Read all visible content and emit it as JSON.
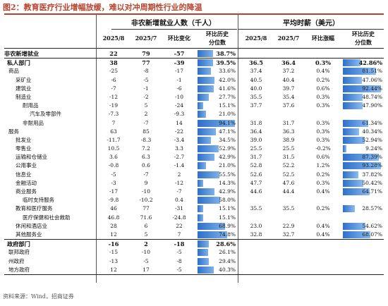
{
  "title": "图2：教育医疗行业增幅放缓，难以对冲周期性行业的降温",
  "header": {
    "group_left": "非农新增就业人数（千人）",
    "group_right": "平均时薪（美元）",
    "cols_left": [
      "2025/8",
      "2025/7",
      "环比变化",
      "环比历史",
      "分位数"
    ],
    "cols_right": [
      "2025/8",
      "2025/7",
      "环比涨幅",
      "环比历史",
      "分位数"
    ]
  },
  "rows": [
    {
      "label": "非农新增就业",
      "indent": 0,
      "bold": true,
      "a": "22",
      "b": "79",
      "c": "-57",
      "p1": "38.7%",
      "p1v": 38.7,
      "d": "",
      "e": "",
      "f": "",
      "p2": "",
      "p2v": null
    },
    {
      "label": "私人部门",
      "indent": 1,
      "bold": true,
      "a": "38",
      "b": "77",
      "c": "-39",
      "p1": "39.5%",
      "p1v": 39.5,
      "d": "36.5",
      "e": "36.4",
      "f": "0.3%",
      "p2": "42.86%",
      "p2v": 42.86
    },
    {
      "label": "商品",
      "indent": 2,
      "bold": false,
      "a": "-25",
      "b": "-8",
      "c": "-17",
      "p1": "33.6%",
      "p1v": 33.6,
      "d": "37.4",
      "e": "37.2",
      "f": "0.4%",
      "p2": "81.51%",
      "p2v": 81.51
    },
    {
      "label": "采矿业",
      "indent": 3,
      "bold": false,
      "a": "-6",
      "b": "-5",
      "c": "-1",
      "p1": "42.0%",
      "p1v": 42.0,
      "d": "40.5",
      "e": "40.4",
      "f": "0.2%",
      "p2": "47.06%",
      "p2v": 47.06
    },
    {
      "label": "建筑业",
      "indent": 3,
      "bold": false,
      "a": "-7",
      "b": "-1",
      "c": "-6",
      "p1": "41.6%",
      "p1v": 41.6,
      "d": "40.0",
      "e": "39.7",
      "f": "0.6%",
      "p2": "92.44%",
      "p2v": 92.44
    },
    {
      "label": "制造业",
      "indent": 3,
      "bold": false,
      "a": "-12",
      "b": "-2",
      "c": "-10",
      "p1": "27.7%",
      "p1v": 27.7,
      "d": "35.5",
      "e": "35.4",
      "f": "0.3%",
      "p2": "48.74%",
      "p2v": 48.74
    },
    {
      "label": "耐用品",
      "indent": 4,
      "bold": false,
      "a": "-19",
      "b": "5",
      "c": "-24",
      "p1": "15.1%",
      "p1v": 15.1,
      "d": "37.7",
      "e": "37.6",
      "f": "0.3%",
      "p2": "47.90%",
      "p2v": 47.9
    },
    {
      "label": "汽车及零部件",
      "indent": 5,
      "bold": false,
      "a": "-7.3",
      "b": "2",
      "c": "-9.3",
      "p1": "21.0%",
      "p1v": 21.0,
      "d": "",
      "e": "",
      "f": "",
      "p2": "",
      "p2v": null
    },
    {
      "label": "非耐用品",
      "indent": 4,
      "bold": false,
      "a": "7",
      "b": "-7",
      "c": "14",
      "p1": "94.1%",
      "p1v": 94.1,
      "d": "31.8",
      "e": "31.7",
      "f": "0.3%",
      "p2": "61.34%",
      "p2v": 61.34
    },
    {
      "label": "服务",
      "indent": 2,
      "bold": false,
      "a": "63",
      "b": "85",
      "c": "-22",
      "p1": "47.1%",
      "p1v": 47.1,
      "d": "36.4",
      "e": "36.3",
      "f": "0.3%",
      "p2": "40.34%",
      "p2v": 40.34
    },
    {
      "label": "批发业",
      "indent": 3,
      "bold": false,
      "a": "-11.7",
      "b": "-8.3",
      "c": "-3.4",
      "p1": "34.5%",
      "p1v": 34.5,
      "d": "39.0",
      "e": "38.9",
      "f": "0.3%",
      "p2": "52.94%",
      "p2v": 52.94
    },
    {
      "label": "零售业",
      "indent": 3,
      "bold": false,
      "a": "10.5",
      "b": "7.2",
      "c": "3.3",
      "p1": "52.9%",
      "p1v": 52.9,
      "d": "25.5",
      "e": "25.5",
      "f": "-0.2%",
      "p2": "9.24%",
      "p2v": 9.24
    },
    {
      "label": "运输和仓储业",
      "indent": 3,
      "bold": false,
      "a": "3.6",
      "b": "6.3",
      "c": "-2.7",
      "p1": "42.9%",
      "p1v": 42.9,
      "d": "31.7",
      "e": "31.5",
      "f": "0.6%",
      "p2": "87.39%",
      "p2v": 87.39
    },
    {
      "label": "公用事业",
      "indent": 3,
      "bold": false,
      "a": "-0.8",
      "b": "0.6",
      "c": "-1.4",
      "p1": "21.0%",
      "p1v": 21.0,
      "d": "52.8",
      "e": "52.2",
      "f": "1.2%",
      "p2": "93.28%",
      "p2v": 93.28
    },
    {
      "label": "信息业",
      "indent": 3,
      "bold": false,
      "a": "-5",
      "b": "-7",
      "c": "2",
      "p1": "55.5%",
      "p1v": 55.5,
      "d": "52.6",
      "e": "52.5",
      "f": "0.2%",
      "p2": "37.82%",
      "p2v": 37.82
    },
    {
      "label": "金融活动",
      "indent": 3,
      "bold": false,
      "a": "-3",
      "b": "9",
      "c": "-12",
      "p1": "14.3%",
      "p1v": 14.3,
      "d": "47.7",
      "e": "47.6",
      "f": "0.3%",
      "p2": "50.42%",
      "p2v": 50.42
    },
    {
      "label": "商业服务",
      "indent": 3,
      "bold": false,
      "a": "-17",
      "b": "-10",
      "c": "-7",
      "p1": "42.9%",
      "p1v": 42.9,
      "d": "44.6",
      "e": "44.4",
      "f": "0.4%",
      "p2": "64.71%",
      "p2v": 64.71
    },
    {
      "label": "临时支持服务",
      "indent": 4,
      "bold": false,
      "a": "-9.8",
      "b": "-10.2",
      "c": "0.4",
      "p1": "58.0%",
      "p1v": 58.0,
      "d": "",
      "e": "",
      "f": "",
      "p2": "",
      "p2v": null
    },
    {
      "label": "教育和医疗服务",
      "indent": 3,
      "bold": false,
      "a": "46",
      "b": "77",
      "c": "-31",
      "p1": "15.1%",
      "p1v": 15.1,
      "d": "35.5",
      "e": "35.5",
      "f": "0.2%",
      "p2": "28.57%",
      "p2v": 28.57
    },
    {
      "label": "医疗保健和社会救助",
      "indent": 4,
      "bold": false,
      "a": "46.8",
      "b": "71.6",
      "c": "-24.8",
      "p1": "15.1%",
      "p1v": 15.1,
      "d": "",
      "e": "",
      "f": "",
      "p2": "",
      "p2v": null
    },
    {
      "label": "休闲和酒店业",
      "indent": 3,
      "bold": false,
      "a": "28",
      "b": "6",
      "c": "22",
      "p1": "68.9%",
      "p1v": 68.9,
      "d": "23.0",
      "e": "22.9",
      "f": "0.4%",
      "p2": "54.62%",
      "p2v": 54.62
    },
    {
      "label": "其他服务业",
      "indent": 3,
      "bold": false,
      "a": "12",
      "b": "5",
      "c": "7",
      "p1": "74.8%",
      "p1v": 74.8,
      "d": "32.8",
      "e": "32.7",
      "f": "0.4%",
      "p2": "68.07%",
      "p2v": 68.07
    },
    {
      "label": "政府部门",
      "indent": 1,
      "bold": true,
      "a": "-16",
      "b": "2",
      "c": "-18",
      "p1": "28.6%",
      "p1v": 28.6,
      "d": "",
      "e": "",
      "f": "",
      "p2": "",
      "p2v": null
    },
    {
      "label": "联邦政府",
      "indent": 2,
      "bold": false,
      "a": "-15",
      "b": "-10",
      "c": "-5",
      "p1": "26.1%",
      "p1v": 26.1,
      "d": "",
      "e": "",
      "f": "",
      "p2": "",
      "p2v": null
    },
    {
      "label": "州政府",
      "indent": 2,
      "bold": false,
      "a": "-13",
      "b": "-5",
      "c": "-8",
      "p1": "29.4%",
      "p1v": 29.4,
      "d": "",
      "e": "",
      "f": "",
      "p2": "",
      "p2v": null
    },
    {
      "label": "地方政府",
      "indent": 2,
      "bold": false,
      "a": "12",
      "b": "17",
      "c": "-5",
      "p1": "40.3%",
      "p1v": 40.3,
      "d": "",
      "e": "",
      "f": "",
      "p2": "",
      "p2v": null
    }
  ],
  "source": "资料来源：Wind，招商证券",
  "colors": {
    "accent": "#b8432c",
    "bar": "#2e6fc9"
  }
}
